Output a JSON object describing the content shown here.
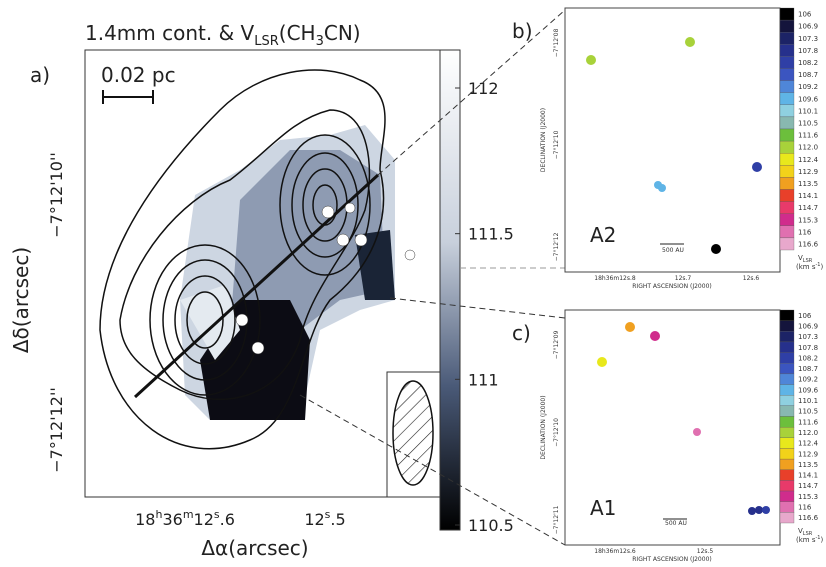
{
  "panel_a": {
    "label": "a)",
    "title": {
      "main": "1.4mm cont. & V",
      "sub": "LSR",
      "open": "(CH",
      "sub2": "3",
      "close": "CN)"
    },
    "scale_bar": "0.02 pc",
    "y_label": "Δδ(arcsec)",
    "x_label": "Δα(arcsec)",
    "y_ticks": [
      "−7°12'10''",
      "−7°12'12''"
    ],
    "x_ticks": [
      {
        "h": "18",
        "hu": "h",
        "m": "36",
        "mu": "m",
        "s": "12",
        "su": "s",
        "f": ".6"
      },
      {
        "s": "12",
        "su": "s",
        "f": ".5"
      }
    ],
    "colorbar": [
      112,
      111.5,
      111,
      110.5
    ]
  },
  "velocity_scale": {
    "unit": "V",
    "unit_sub": "LSR",
    "unit_2": "(km s",
    "unit_exp": "-1",
    "unit_close": ")",
    "labels": [
      "106",
      "106.9",
      "107.3",
      "107.8",
      "108.2",
      "108.7",
      "109.2",
      "109.6",
      "110.1",
      "110.5",
      "111.6",
      "112.0",
      "112.4",
      "112.9",
      "113.5",
      "114.1",
      "114.7",
      "115.3",
      "116",
      "116.6"
    ],
    "colors": [
      "#000000",
      "#14143c",
      "#1c2366",
      "#26308c",
      "#2f3fa6",
      "#3b55c0",
      "#4f86d8",
      "#5fb4e6",
      "#8fd0e0",
      "#88b8b0",
      "#6cbf3c",
      "#a8d23a",
      "#e8e81c",
      "#f2d21a",
      "#f0a020",
      "#e8402a",
      "#e83a6a",
      "#d02c8c",
      "#e070b0",
      "#e8a8cc"
    ]
  },
  "panel_b": {
    "label": "b)",
    "region": "A2",
    "scale_bar": "500 AU",
    "dec_label": "DECLINATION (J2000)",
    "ra_label": "RIGHT ASCENSION (J2000)",
    "dec_ticks": [
      "−7°12'08",
      "−7°12'10",
      "−7°12'12"
    ],
    "ra_ticks": [
      "18h36m12s.8",
      "12s.7",
      "12s.6"
    ]
  },
  "panel_c": {
    "label": "c)",
    "region": "A1",
    "scale_bar": "500 AU",
    "dec_label": "DECLINATION (J2000)",
    "ra_label": "RIGHT ASCENSION (J2000)",
    "dec_ticks": [
      "−7°12'09",
      "−7°12'10",
      "−7°12'11"
    ],
    "ra_ticks": [
      "18h36m12s.6",
      "12s.5"
    ]
  }
}
